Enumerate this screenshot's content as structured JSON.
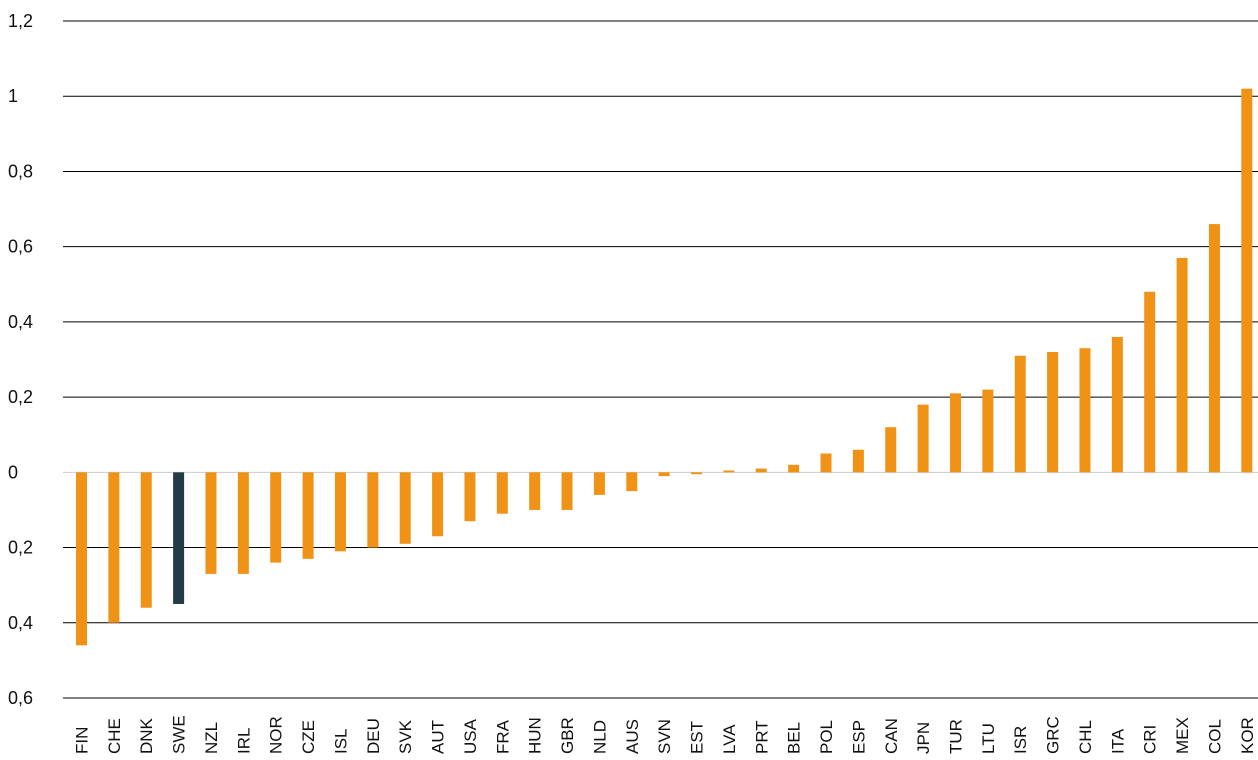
{
  "chart_data": {
    "type": "bar",
    "title": "",
    "xlabel": "",
    "ylabel": "",
    "ylim": [
      -0.6,
      1.2
    ],
    "grid": true,
    "y_ticks": [
      1.2,
      1.0,
      0.8,
      0.6,
      0.4,
      0.2,
      0,
      -0.2,
      -0.4,
      -0.6
    ],
    "y_tick_labels": [
      "1,2",
      "1",
      "0,8",
      "0,6",
      "0,4",
      "0,2",
      "0",
      "0,2",
      "0,4",
      "0,6"
    ],
    "categories": [
      "FIN",
      "CHE",
      "DNK",
      "SWE",
      "NZL",
      "IRL",
      "NOR",
      "CZE",
      "ISL",
      "DEU",
      "SVK",
      "AUT",
      "USA",
      "FRA",
      "HUN",
      "GBR",
      "NLD",
      "AUS",
      "SVN",
      "EST",
      "LVA",
      "PRT",
      "BEL",
      "POL",
      "ESP",
      "CAN",
      "JPN",
      "TUR",
      "LTU",
      "ISR",
      "GRC",
      "CHL",
      "ITA",
      "CRI",
      "MEX",
      "COL",
      "KOR"
    ],
    "values": [
      -0.46,
      -0.4,
      -0.36,
      -0.35,
      -0.27,
      -0.27,
      -0.24,
      -0.23,
      -0.21,
      -0.2,
      -0.19,
      -0.17,
      -0.13,
      -0.11,
      -0.1,
      -0.1,
      -0.06,
      -0.05,
      -0.01,
      -0.005,
      0.005,
      0.01,
      0.02,
      0.05,
      0.06,
      0.12,
      0.18,
      0.21,
      0.22,
      0.31,
      0.32,
      0.33,
      0.36,
      0.48,
      0.57,
      0.66,
      1.02
    ],
    "highlight_category": "SWE",
    "colors": {
      "bar": "#f09216",
      "highlight": "#233a48",
      "grid": "#000000",
      "zero": "#cccccc"
    }
  }
}
